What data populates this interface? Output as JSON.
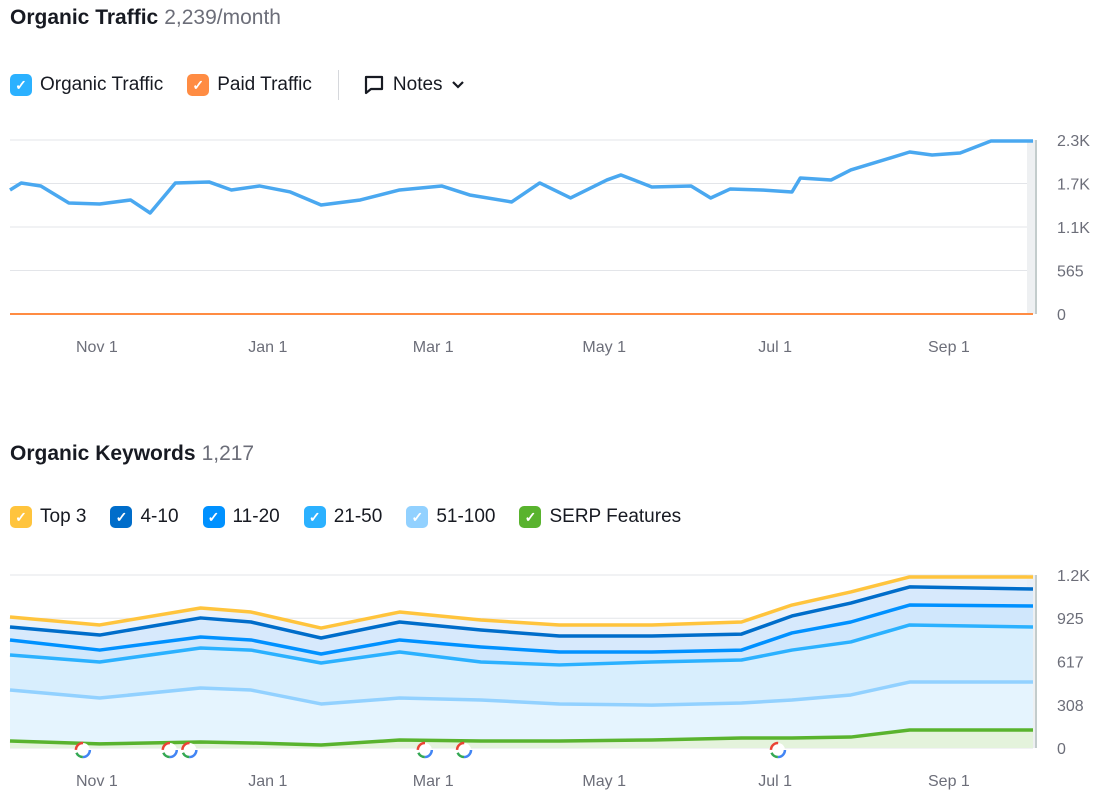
{
  "traffic": {
    "title": "Organic Traffic",
    "value": "2,239/month",
    "legend": [
      {
        "label": "Organic Traffic",
        "color": "#2bb1ff"
      },
      {
        "label": "Paid Traffic",
        "color": "#ff8c43"
      }
    ],
    "notes_label": "Notes"
  },
  "keywords": {
    "title": "Organic Keywords",
    "value": "1,217",
    "legend": [
      {
        "label": "Top 3",
        "color": "#ffc43d"
      },
      {
        "label": "4-10",
        "color": "#006dca"
      },
      {
        "label": "11-20",
        "color": "#0091ff"
      },
      {
        "label": "21-50",
        "color": "#2bb1ff"
      },
      {
        "label": "51-100",
        "color": "#92d1ff"
      },
      {
        "label": "SERP Features",
        "color": "#59b32e"
      }
    ]
  },
  "chart_data": [
    {
      "type": "line",
      "title": "Organic Traffic",
      "ylim": [
        0,
        2260
      ],
      "xlim": [
        0,
        365
      ],
      "yticks": [
        {
          "v": 0,
          "label": "0"
        },
        {
          "v": 565,
          "label": "565"
        },
        {
          "v": 1130,
          "label": "1.1K"
        },
        {
          "v": 1695,
          "label": "1.7K"
        },
        {
          "v": 2260,
          "label": "2.3K"
        }
      ],
      "xticks": [
        {
          "v": 31,
          "label": "Nov 1"
        },
        {
          "v": 92,
          "label": "Jan 1"
        },
        {
          "v": 151,
          "label": "Mar 1"
        },
        {
          "v": 212,
          "label": "May 1"
        },
        {
          "v": 273,
          "label": "Jul 1"
        },
        {
          "v": 335,
          "label": "Sep 1"
        }
      ],
      "series": [
        {
          "name": "Organic Traffic",
          "color": "#4aa8f0",
          "x": [
            0,
            4,
            11,
            21,
            32,
            43,
            50,
            59,
            71,
            79,
            89,
            100,
            111,
            125,
            139,
            154,
            164,
            179,
            189,
            200,
            213,
            218,
            229,
            243,
            250,
            257,
            268,
            279,
            282,
            293,
            300,
            314,
            321,
            329,
            339,
            350,
            365
          ],
          "values": [
            1611,
            1702,
            1663,
            1442,
            1429,
            1481,
            1312,
            1702,
            1715,
            1611,
            1663,
            1585,
            1416,
            1481,
            1611,
            1663,
            1546,
            1455,
            1702,
            1507,
            1741,
            1806,
            1650,
            1663,
            1507,
            1624,
            1611,
            1585,
            1767,
            1741,
            1871,
            2026,
            2104,
            2065,
            2091,
            2247,
            2247
          ]
        },
        {
          "name": "Paid Traffic",
          "color": "#ff8c43",
          "x": [
            0,
            365
          ],
          "values": [
            0,
            0
          ]
        }
      ]
    },
    {
      "type": "area",
      "title": "Organic Keywords",
      "ylim": [
        0,
        1233
      ],
      "xlim": [
        0,
        365
      ],
      "yticks": [
        {
          "v": 0,
          "label": "0"
        },
        {
          "v": 308,
          "label": "308"
        },
        {
          "v": 617,
          "label": "617"
        },
        {
          "v": 925,
          "label": "925"
        },
        {
          "v": 1233,
          "label": "1.2K"
        }
      ],
      "xticks": [
        {
          "v": 31,
          "label": "Nov 1"
        },
        {
          "v": 92,
          "label": "Jan 1"
        },
        {
          "v": 151,
          "label": "Mar 1"
        },
        {
          "v": 212,
          "label": "May 1"
        },
        {
          "v": 273,
          "label": "Jul 1"
        },
        {
          "v": 335,
          "label": "Sep 1"
        }
      ],
      "x": [
        0,
        32,
        68,
        86,
        111,
        139,
        168,
        196,
        229,
        261,
        279,
        300,
        321,
        365
      ],
      "series": [
        {
          "name": "Top 3",
          "color": "#ffc43d",
          "values": [
            934,
            877,
            998,
            969,
            855,
            969,
            912,
            877,
            877,
            898,
            1019,
            1112,
            1219,
            1219
          ]
        },
        {
          "name": "4-10",
          "color": "#006dca",
          "values": [
            862,
            805,
            927,
            898,
            784,
            898,
            841,
            798,
            798,
            812,
            941,
            1033,
            1148,
            1133
          ]
        },
        {
          "name": "11-20",
          "color": "#0091ff",
          "values": [
            770,
            698,
            791,
            770,
            670,
            770,
            720,
            684,
            684,
            698,
            820,
            898,
            1019,
            1012
          ]
        },
        {
          "name": "21-50",
          "color": "#2bb1ff",
          "values": [
            663,
            613,
            713,
            698,
            606,
            684,
            613,
            592,
            613,
            627,
            698,
            756,
            877,
            862
          ]
        },
        {
          "name": "51-100",
          "color": "#92d1ff",
          "values": [
            413,
            356,
            428,
            413,
            314,
            356,
            342,
            314,
            306,
            321,
            342,
            378,
            470,
            470
          ]
        },
        {
          "name": "SERP Features",
          "color": "#59b32e",
          "values": [
            50,
            29,
            43,
            36,
            21,
            57,
            50,
            50,
            57,
            71,
            71,
            78,
            128,
            128
          ]
        }
      ],
      "google_updates": [
        26,
        57,
        64,
        148,
        162,
        274
      ]
    }
  ]
}
